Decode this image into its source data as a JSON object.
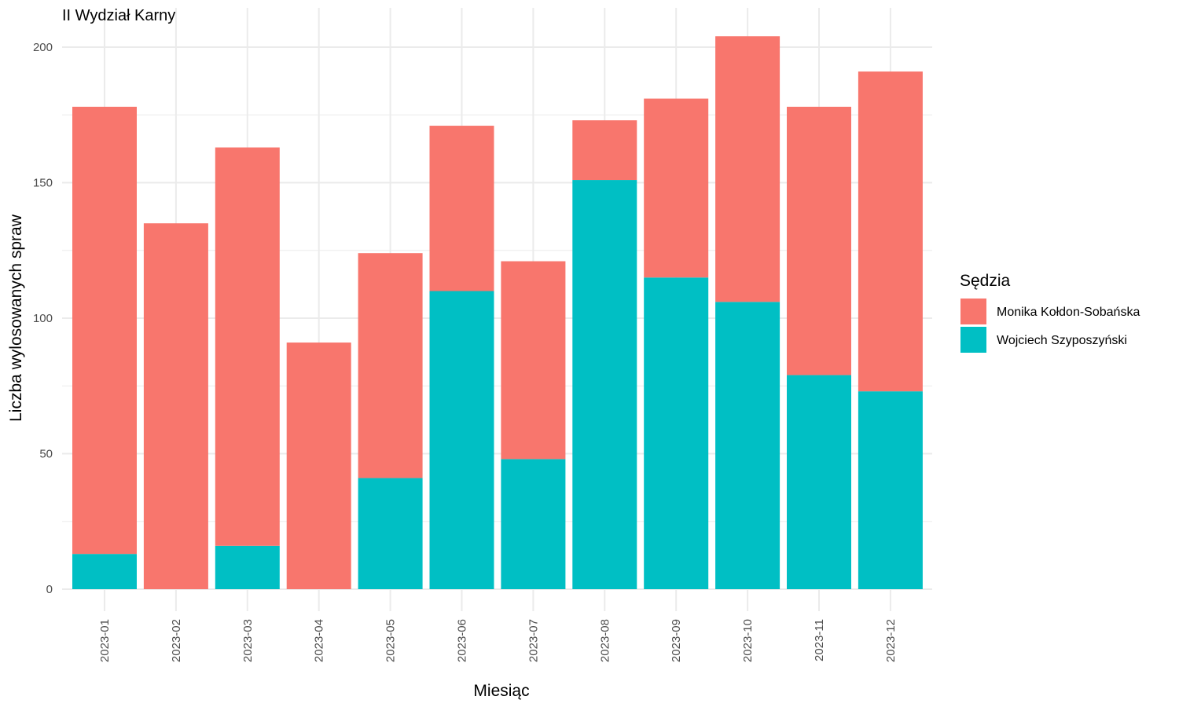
{
  "chart_data": {
    "type": "bar",
    "stacked": true,
    "title": "II Wydział Karny",
    "xlabel": "Miesiąc",
    "ylabel": "Liczba wylosowanych spraw",
    "ylim": [
      0,
      210
    ],
    "yticks": [
      0,
      50,
      100,
      150,
      200
    ],
    "grid": true,
    "legend": {
      "title": "Sędzia",
      "position": "right"
    },
    "categories": [
      "2023-01",
      "2023-02",
      "2023-03",
      "2023-04",
      "2023-05",
      "2023-06",
      "2023-07",
      "2023-08",
      "2023-09",
      "2023-10",
      "2023-11",
      "2023-12"
    ],
    "series": [
      {
        "name": "Wojciech Szyposzyński",
        "color": "#00bfc4",
        "values": [
          13,
          0,
          16,
          0,
          41,
          110,
          48,
          151,
          115,
          106,
          79,
          73
        ]
      },
      {
        "name": "Monika Kołdon-Sobańska",
        "color": "#f8766d",
        "values": [
          165,
          135,
          147,
          91,
          83,
          61,
          73,
          22,
          66,
          98,
          99,
          118
        ]
      }
    ]
  }
}
